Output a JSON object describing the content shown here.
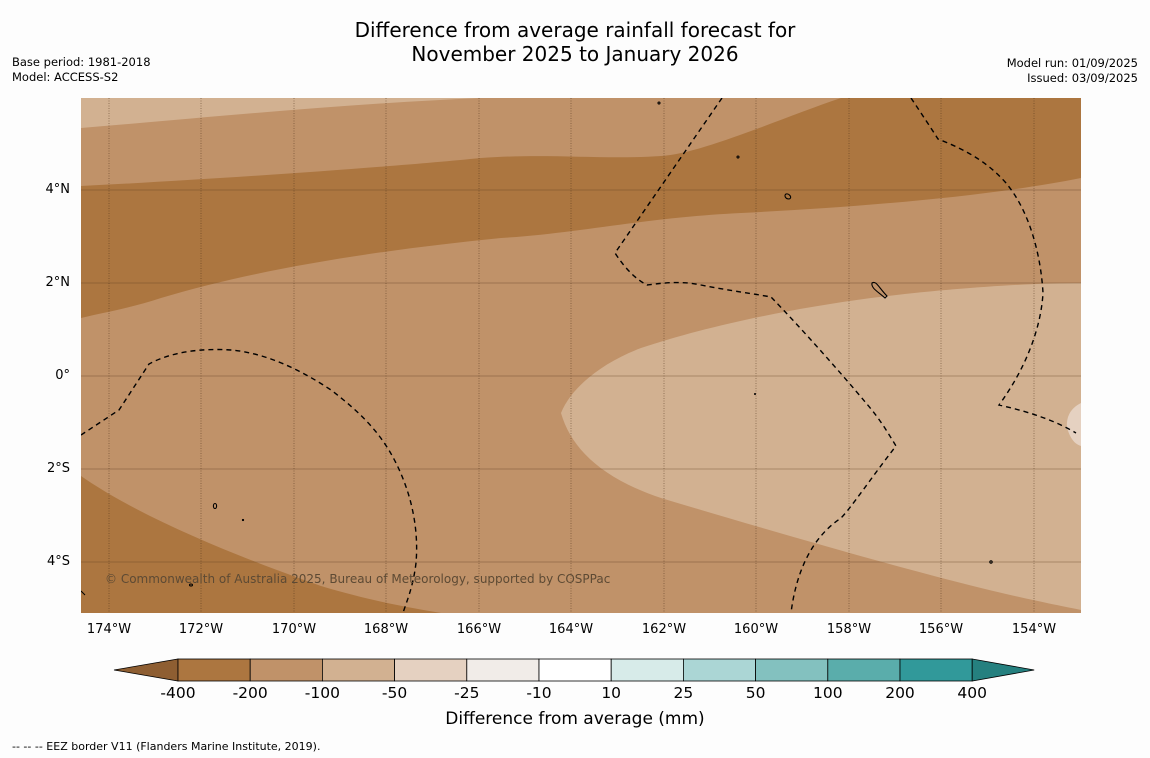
{
  "title_line1": "Difference from average rainfall forecast for",
  "title_line2": "November 2025 to January 2026",
  "base_period": "Base period: 1981-2018",
  "model": "Model: ACCESS-S2",
  "model_run": "Model run: 01/09/2025",
  "issued": "Issued: 03/09/2025",
  "lat_labels": [
    "4°N",
    "2°N",
    "0°",
    "2°S",
    "4°S"
  ],
  "lon_labels": [
    "174°W",
    "172°W",
    "170°W",
    "168°W",
    "166°W",
    "164°W",
    "162°W",
    "160°W",
    "158°W",
    "156°W",
    "154°W"
  ],
  "copyright": "© Commonwealth of Australia 2025, Bureau of Meteorology, supported by COSPPac",
  "colorbar": {
    "title": "Difference from average (mm)",
    "ticks": [
      "-400",
      "-200",
      "-100",
      "-50",
      "-25",
      "-10",
      "10",
      "25",
      "50",
      "100",
      "200",
      "400"
    ],
    "colors": [
      "#ac7640",
      "#c09269",
      "#d2b191",
      "#e5d1c1",
      "#f1ece8",
      "#ffffff",
      "#d7ebe9",
      "#abd6d5",
      "#83c1bf",
      "#5aadab",
      "#31999a"
    ],
    "under_color": "#8e5e32",
    "over_color": "#25807f"
  },
  "legend_note": "--  --  -- EEZ border V11 (Flanders Marine Institute, 2019).",
  "map_colors": {
    "level_-200": "#ac7640",
    "level_-100": "#c09269",
    "level_-50": "#d2b191"
  }
}
